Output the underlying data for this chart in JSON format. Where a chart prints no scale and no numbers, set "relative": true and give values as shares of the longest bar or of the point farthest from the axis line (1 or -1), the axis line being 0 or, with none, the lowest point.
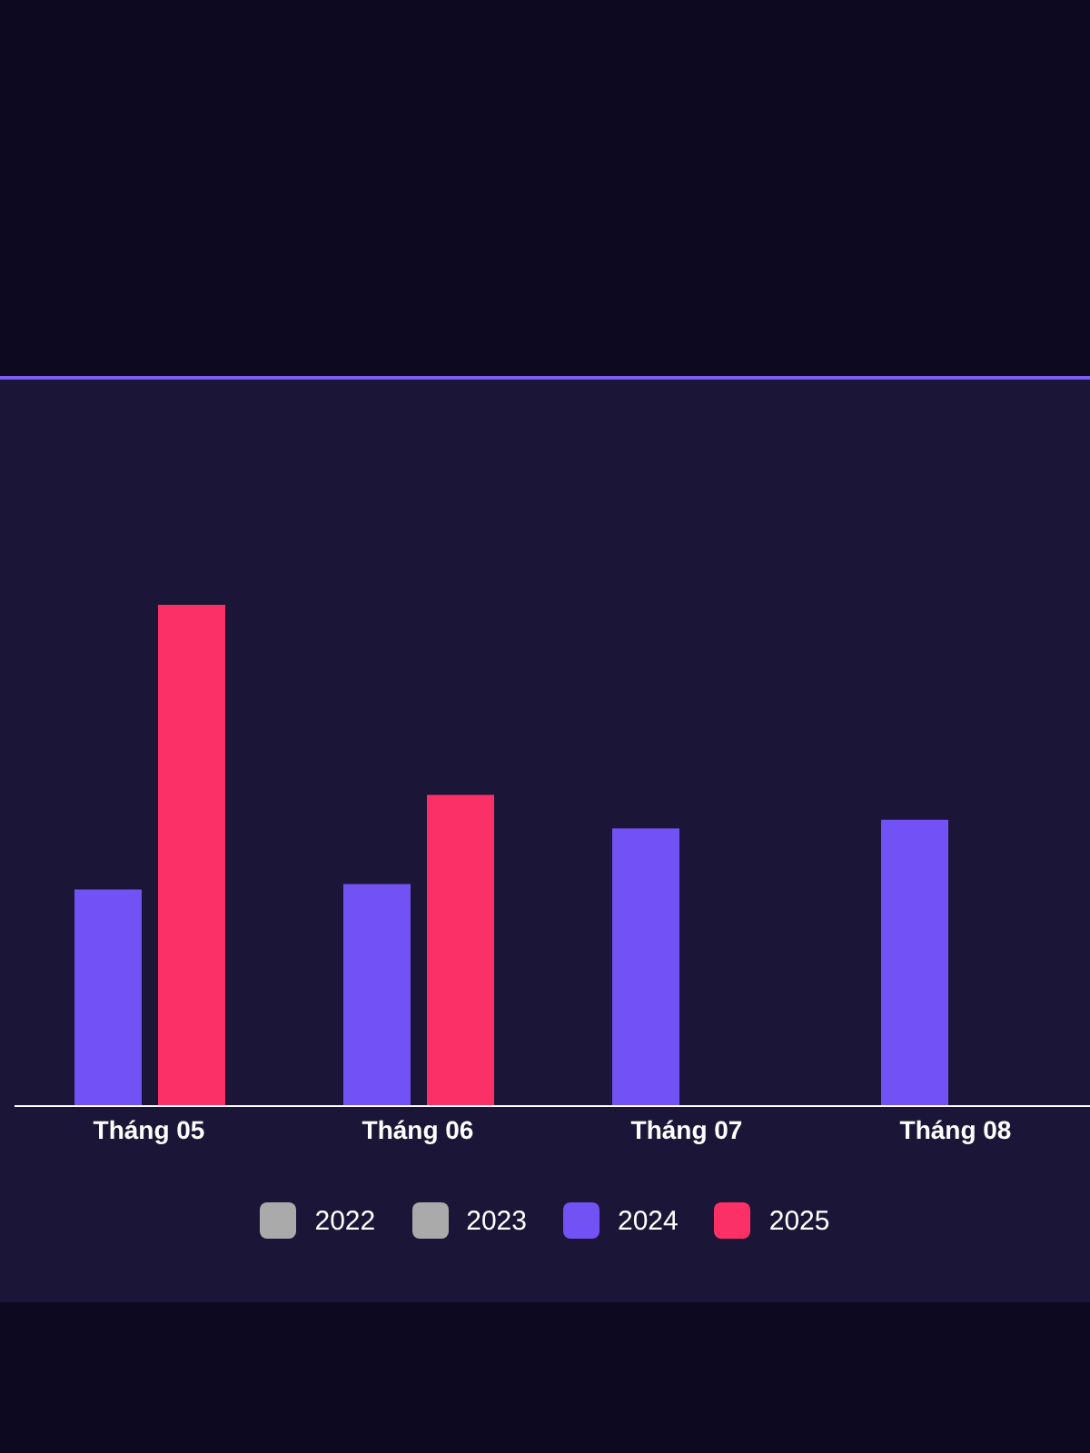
{
  "chart_data": {
    "type": "bar",
    "relative": true,
    "categories": [
      "Tháng 05",
      "Tháng 06",
      "Tháng 07",
      "Tháng 08"
    ],
    "series": [
      {
        "name": "2022",
        "color": "#aaaaaa",
        "values": [
          null,
          null,
          null,
          null
        ]
      },
      {
        "name": "2023",
        "color": "#aaaaaa",
        "values": [
          null,
          null,
          null,
          null
        ]
      },
      {
        "name": "2024",
        "color": "#7352f5",
        "values": [
          0.432,
          0.443,
          0.554,
          0.571
        ]
      },
      {
        "name": "2025",
        "color": "#fb3066",
        "values": [
          1,
          0.621,
          null,
          null
        ]
      }
    ],
    "legend": "bottom",
    "grid": false
  }
}
